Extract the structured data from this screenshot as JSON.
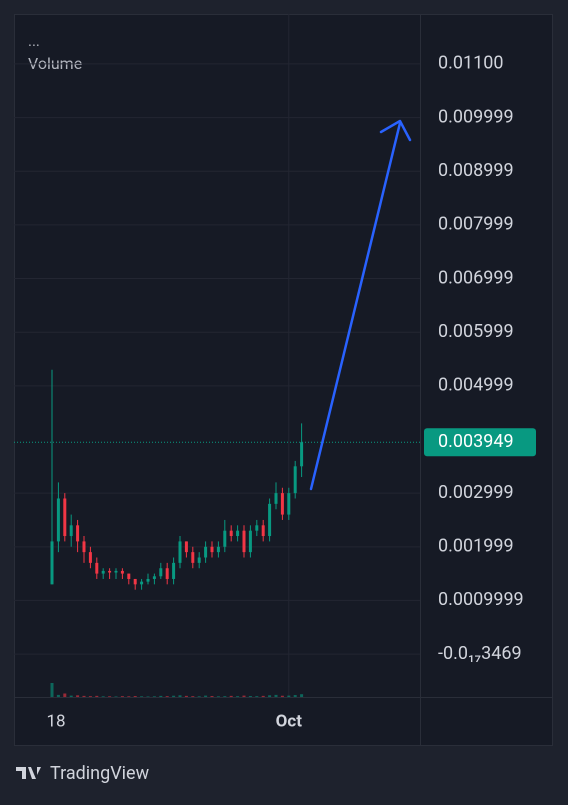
{
  "chart_data": {
    "type": "candlestick",
    "menu": "...",
    "volume_label": "Volume",
    "brand": "TradingView",
    "categories": [
      "18",
      null,
      null,
      null,
      null,
      null,
      null,
      null,
      null,
      null,
      null,
      null,
      null,
      null,
      null,
      null,
      null,
      null,
      null,
      null,
      null,
      null,
      null,
      null,
      null,
      null,
      null,
      null,
      null,
      null,
      null,
      null,
      null,
      null,
      null,
      null,
      null,
      "Oct",
      null,
      null
    ],
    "open": [
      0.0013,
      0.0021,
      0.0029,
      0.0022,
      0.0024,
      0.0021,
      0.0019,
      0.0017,
      0.0015,
      0.00155,
      0.00152,
      0.00155,
      0.0015,
      0.0014,
      0.0013,
      0.00135,
      0.0014,
      0.00145,
      0.0016,
      0.0014,
      0.0017,
      0.0021,
      0.0019,
      0.0017,
      0.0018,
      0.002,
      0.0019,
      0.002,
      0.0023,
      0.0022,
      0.0023,
      0.0019,
      0.0023,
      0.0024,
      0.0022,
      0.0028,
      0.003,
      0.0026,
      0.003,
      0.0035
    ],
    "high": [
      0.0053,
      0.0032,
      0.003,
      0.0026,
      0.0025,
      0.0022,
      0.002,
      0.0018,
      0.0016,
      0.0016,
      0.0016,
      0.0016,
      0.0015,
      0.0014,
      0.0014,
      0.0015,
      0.0015,
      0.0017,
      0.0017,
      0.0018,
      0.0022,
      0.0021,
      0.002,
      0.0019,
      0.0021,
      0.0021,
      0.0021,
      0.0025,
      0.0024,
      0.0024,
      0.0024,
      0.0024,
      0.0025,
      0.0025,
      0.0029,
      0.0032,
      0.0031,
      0.0031,
      0.0036,
      0.0043
    ],
    "low": [
      0.0013,
      0.0019,
      0.0021,
      0.002,
      0.0019,
      0.0017,
      0.0016,
      0.0014,
      0.0014,
      0.0014,
      0.0014,
      0.0014,
      0.0013,
      0.0012,
      0.0012,
      0.0013,
      0.0013,
      0.0014,
      0.0013,
      0.0013,
      0.0016,
      0.0018,
      0.0016,
      0.0016,
      0.0017,
      0.0018,
      0.0018,
      0.0019,
      0.0021,
      0.0021,
      0.0018,
      0.0018,
      0.0022,
      0.0021,
      0.0021,
      0.0027,
      0.0025,
      0.0025,
      0.0029,
      0.0033
    ],
    "close": [
      0.0021,
      0.0029,
      0.0022,
      0.0024,
      0.0021,
      0.0019,
      0.0017,
      0.0015,
      0.00155,
      0.00152,
      0.00155,
      0.0015,
      0.0014,
      0.0013,
      0.00135,
      0.0014,
      0.00145,
      0.0016,
      0.0014,
      0.0017,
      0.0021,
      0.0019,
      0.0017,
      0.0018,
      0.002,
      0.0019,
      0.002,
      0.0023,
      0.0022,
      0.0023,
      0.0019,
      0.0023,
      0.0024,
      0.0022,
      0.0028,
      0.003,
      0.0026,
      0.003,
      0.0035,
      0.003949
    ],
    "volume": [
      100,
      15,
      25,
      10,
      12,
      8,
      6,
      8,
      5,
      5,
      4,
      6,
      5,
      7,
      5,
      4,
      5,
      8,
      6,
      9,
      12,
      8,
      6,
      5,
      10,
      7,
      5,
      6,
      8,
      6,
      10,
      7,
      6,
      8,
      12,
      15,
      9,
      10,
      14,
      20
    ],
    "up_color": "#089981",
    "down_color": "#f23645",
    "last_price": 0.003949,
    "ylim": [
      -0.0008,
      0.01193
    ],
    "yticks": [
      {
        "value": 0.011,
        "label": "0.01100"
      },
      0.009999,
      0.008999,
      0.007999,
      0.006999,
      0.005999,
      0.004999,
      0.002999,
      0.001999,
      0.0009999,
      {
        "value": -3.469e-21,
        "label": "-0.0₁₇3469"
      }
    ],
    "grid": true
  }
}
